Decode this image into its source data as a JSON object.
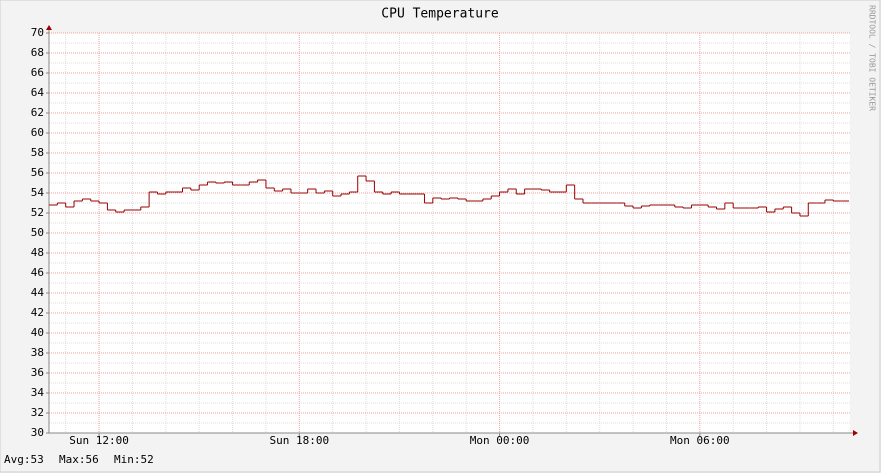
{
  "chart_data": {
    "type": "step",
    "title": "CPU Temperature",
    "watermark": "RRDTOOL / TOBI OETIKER",
    "footer": [
      "Avg:53",
      "Max:56",
      "Min:52"
    ],
    "xlim": [
      10.5,
      34.5
    ],
    "xticks": [
      {
        "value": 12,
        "label": "Sun 12:00"
      },
      {
        "value": 18,
        "label": "Sun 18:00"
      },
      {
        "value": 24,
        "label": "Mon 00:00"
      },
      {
        "value": 30,
        "label": "Mon 06:00"
      }
    ],
    "xminor_ticks": [
      11,
      13,
      14,
      15,
      16,
      17,
      19,
      20,
      21,
      22,
      23,
      25,
      26,
      27,
      28,
      29,
      31,
      32,
      33,
      34
    ],
    "ylim": [
      30,
      70
    ],
    "yticks": [
      30,
      32,
      34,
      36,
      38,
      40,
      42,
      44,
      46,
      48,
      50,
      52,
      54,
      56,
      58,
      60,
      62,
      64,
      66,
      68,
      70
    ],
    "yminor_ticks": [
      31,
      33,
      35,
      37,
      39,
      41,
      43,
      45,
      47,
      49,
      51,
      53,
      55,
      57,
      59,
      61,
      63,
      65,
      67,
      69
    ],
    "grid": true,
    "color": "#990000",
    "x": [
      10.5,
      10.75,
      11.0,
      11.25,
      11.5,
      11.75,
      12.0,
      12.25,
      12.5,
      12.75,
      13.0,
      13.25,
      13.5,
      13.75,
      14.0,
      14.25,
      14.5,
      14.75,
      15.0,
      15.25,
      15.5,
      15.75,
      16.0,
      16.25,
      16.5,
      16.75,
      17.0,
      17.25,
      17.5,
      17.75,
      18.0,
      18.25,
      18.5,
      18.75,
      19.0,
      19.25,
      19.5,
      19.75,
      20.0,
      20.25,
      20.5,
      20.75,
      21.0,
      21.25,
      21.5,
      21.75,
      22.0,
      22.25,
      22.5,
      22.75,
      23.0,
      23.25,
      23.5,
      23.75,
      24.0,
      24.25,
      24.5,
      24.75,
      25.0,
      25.25,
      25.5,
      25.75,
      26.0,
      26.25,
      26.5,
      26.75,
      27.0,
      27.25,
      27.5,
      27.75,
      28.0,
      28.25,
      28.5,
      28.75,
      29.0,
      29.25,
      29.5,
      29.75,
      30.0,
      30.25,
      30.5,
      30.75,
      31.0,
      31.25,
      31.5,
      31.75,
      32.0,
      32.25,
      32.5,
      32.75,
      33.0,
      33.25,
      33.5,
      33.75,
      34.0,
      34.25
    ],
    "values": [
      52.8,
      53.0,
      52.6,
      53.2,
      53.4,
      53.2,
      53.0,
      52.3,
      52.1,
      52.3,
      52.3,
      52.6,
      54.1,
      53.9,
      54.1,
      54.1,
      54.5,
      54.3,
      54.8,
      55.1,
      55.0,
      55.1,
      54.8,
      54.8,
      55.1,
      55.3,
      54.5,
      54.2,
      54.4,
      54.0,
      54.0,
      54.4,
      54.0,
      54.2,
      53.7,
      53.9,
      54.1,
      55.7,
      55.2,
      54.1,
      53.9,
      54.1,
      53.9,
      53.9,
      53.9,
      53.0,
      53.5,
      53.4,
      53.5,
      53.4,
      53.2,
      53.2,
      53.4,
      53.7,
      54.1,
      54.4,
      53.9,
      54.4,
      54.4,
      54.3,
      54.1,
      54.1,
      54.8,
      53.4,
      53.0,
      53.0,
      53.0,
      53.0,
      53.0,
      52.7,
      52.5,
      52.7,
      52.8,
      52.8,
      52.8,
      52.6,
      52.5,
      52.8,
      52.8,
      52.6,
      52.4,
      53.0,
      52.5,
      52.5,
      52.5,
      52.6,
      52.1,
      52.4,
      52.6,
      52.0,
      51.7,
      53.0,
      53.0,
      53.3,
      53.2,
      53.2
    ]
  }
}
